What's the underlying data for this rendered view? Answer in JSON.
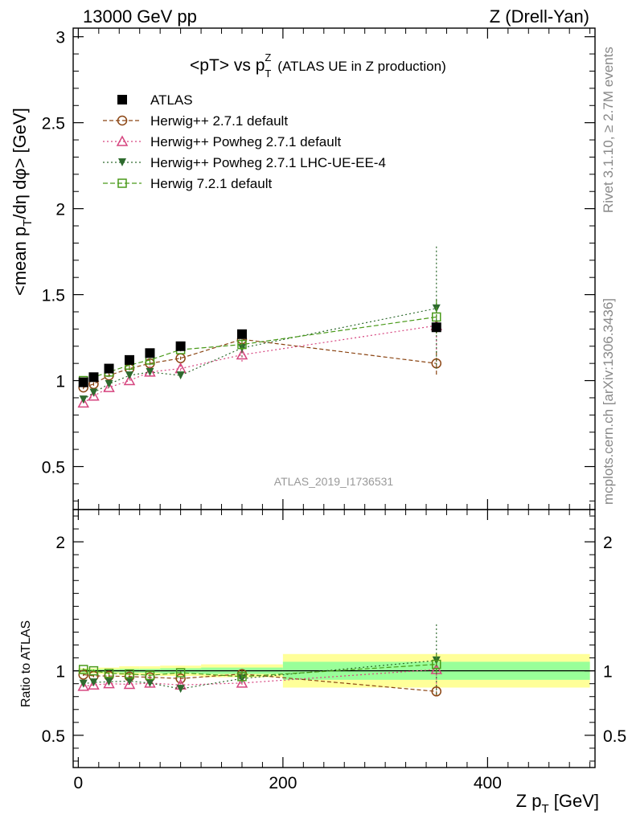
{
  "header": {
    "left": "13000 GeV pp",
    "right": "Z (Drell-Yan)"
  },
  "side": {
    "rivet": "Rivet 3.1.10, ≥ 2.7M events",
    "mcplots": "mcplots.cern.ch [arXiv:1306.3436]"
  },
  "chart_data": [
    {
      "type": "scatter",
      "title": "<pT> vs p_T^Z (ATLAS UE in Z production)",
      "title_main": "<pT> vs p",
      "title_sup": "Z",
      "title_sub": "T",
      "title_note": "(ATLAS UE in Z production)",
      "ylabel": "<mean p_T/dη dφ> [GeV]",
      "ylabel_a": "<mean p",
      "ylabel_sub": "T",
      "ylabel_b": "/dη dφ> [GeV]",
      "watermark": "ATLAS_2019_I1736531",
      "xlim": [
        -5,
        505
      ],
      "ylim": [
        0.25,
        3.05
      ],
      "yticks": [
        0.5,
        1,
        1.5,
        2,
        2.5,
        3
      ],
      "ytick_labels": [
        "0.5",
        "1",
        "1.5",
        "2",
        "2.5",
        "3"
      ],
      "legend_position": "top-left",
      "colors": {
        "data": "#000000",
        "herwigpp": "#8b4513",
        "powheg": "#d6457f",
        "powheg_ue": "#2e6a2e",
        "herwig7": "#4a9a1a"
      },
      "series": [
        {
          "name": "ATLAS",
          "marker": "filled-square",
          "x": [
            5,
            15,
            30,
            50,
            70,
            100,
            160,
            350
          ],
          "y": [
            0.99,
            1.02,
            1.07,
            1.12,
            1.16,
            1.2,
            1.27,
            1.31
          ],
          "yerr": [
            0.01,
            0.01,
            0.01,
            0.01,
            0.01,
            0.01,
            0.02,
            0.03
          ]
        },
        {
          "name": "Herwig++ 2.7.1 default",
          "marker": "open-circle",
          "line": "dashed",
          "x": [
            5,
            15,
            30,
            50,
            70,
            100,
            160,
            350
          ],
          "y": [
            0.96,
            0.98,
            1.03,
            1.07,
            1.1,
            1.13,
            1.24,
            1.1
          ],
          "yerr": [
            0.01,
            0.01,
            0.01,
            0.01,
            0.01,
            0.01,
            0.04,
            0.07
          ]
        },
        {
          "name": "Herwig++ Powheg 2.7.1 default",
          "marker": "open-triangle",
          "line": "dotted",
          "x": [
            5,
            15,
            30,
            50,
            70,
            100,
            160,
            350
          ],
          "y": [
            0.87,
            0.91,
            0.96,
            1.0,
            1.05,
            1.07,
            1.15,
            1.32
          ],
          "yerr": [
            0.01,
            0.01,
            0.01,
            0.01,
            0.01,
            0.02,
            0.04,
            0.15
          ]
        },
        {
          "name": "Herwig++ Powheg 2.7.1 LHC-UE-EE-4",
          "marker": "filled-triangle-down",
          "line": "dotted",
          "x": [
            5,
            15,
            30,
            50,
            70,
            100,
            160,
            350
          ],
          "y": [
            0.89,
            0.93,
            0.98,
            1.03,
            1.05,
            1.03,
            1.19,
            1.42
          ],
          "yerr": [
            0.01,
            0.01,
            0.01,
            0.01,
            0.01,
            0.02,
            0.05,
            0.36
          ]
        },
        {
          "name": "Herwig 7.2.1 default",
          "marker": "open-square",
          "line": "dashed",
          "x": [
            5,
            15,
            30,
            50,
            70,
            100,
            160,
            350
          ],
          "y": [
            1.0,
            1.02,
            1.05,
            1.09,
            1.12,
            1.18,
            1.21,
            1.37
          ],
          "yerr": [
            0.01,
            0.01,
            0.01,
            0.01,
            0.01,
            0.01,
            0.03,
            0.1
          ]
        }
      ]
    },
    {
      "type": "scatter",
      "ylabel": "Ratio to ATLAS",
      "xlabel": "Z p_T [GeV]",
      "xlabel_a": "Z p",
      "xlabel_sub": "T",
      "xlabel_b": " [GeV]",
      "xlim": [
        -5,
        505
      ],
      "ylim": [
        0.25,
        2.25
      ],
      "yticks": [
        0.5,
        1,
        2
      ],
      "ytick_labels": [
        "0.5",
        "1",
        "2"
      ],
      "xticks": [
        0,
        200,
        400
      ],
      "xtick_labels": [
        "0",
        "200",
        "400"
      ],
      "bands": {
        "x_edges": [
          0,
          10,
          20,
          40,
          60,
          80,
          120,
          200,
          500
        ],
        "stat_half_width": [
          0.012,
          0.012,
          0.012,
          0.015,
          0.015,
          0.02,
          0.025,
          0.07
        ],
        "total_half_width": [
          0.02,
          0.02,
          0.025,
          0.035,
          0.035,
          0.04,
          0.05,
          0.13
        ],
        "stat_color": "#99ff99",
        "total_color": "#ffff99"
      },
      "series": [
        {
          "name": "Herwig++ 2.7.1 default",
          "x": [
            5,
            15,
            30,
            50,
            70,
            100,
            160,
            350
          ],
          "y": [
            0.97,
            0.96,
            0.96,
            0.955,
            0.95,
            0.94,
            0.975,
            0.84
          ],
          "yerr": [
            0.01,
            0.01,
            0.01,
            0.01,
            0.01,
            0.01,
            0.03,
            0.05
          ]
        },
        {
          "name": "Herwig++ Powheg 2.7.1 default",
          "x": [
            5,
            15,
            30,
            50,
            70,
            100,
            160,
            350
          ],
          "y": [
            0.88,
            0.89,
            0.9,
            0.895,
            0.905,
            0.89,
            0.905,
            1.01
          ],
          "yerr": [
            0.01,
            0.01,
            0.01,
            0.01,
            0.01,
            0.02,
            0.03,
            0.12
          ]
        },
        {
          "name": "Herwig++ Powheg 2.7.1 LHC-UE-EE-4",
          "x": [
            5,
            15,
            30,
            50,
            70,
            100,
            160,
            350
          ],
          "y": [
            0.9,
            0.91,
            0.915,
            0.92,
            0.905,
            0.86,
            0.94,
            1.08
          ],
          "yerr": [
            0.01,
            0.01,
            0.01,
            0.01,
            0.01,
            0.02,
            0.04,
            0.28
          ]
        },
        {
          "name": "Herwig 7.2.1 default",
          "x": [
            5,
            15,
            30,
            50,
            70,
            100,
            160,
            350
          ],
          "y": [
            1.01,
            1.0,
            0.98,
            0.975,
            0.965,
            0.985,
            0.955,
            1.05
          ],
          "yerr": [
            0.01,
            0.01,
            0.01,
            0.01,
            0.01,
            0.01,
            0.02,
            0.08
          ]
        }
      ]
    }
  ]
}
